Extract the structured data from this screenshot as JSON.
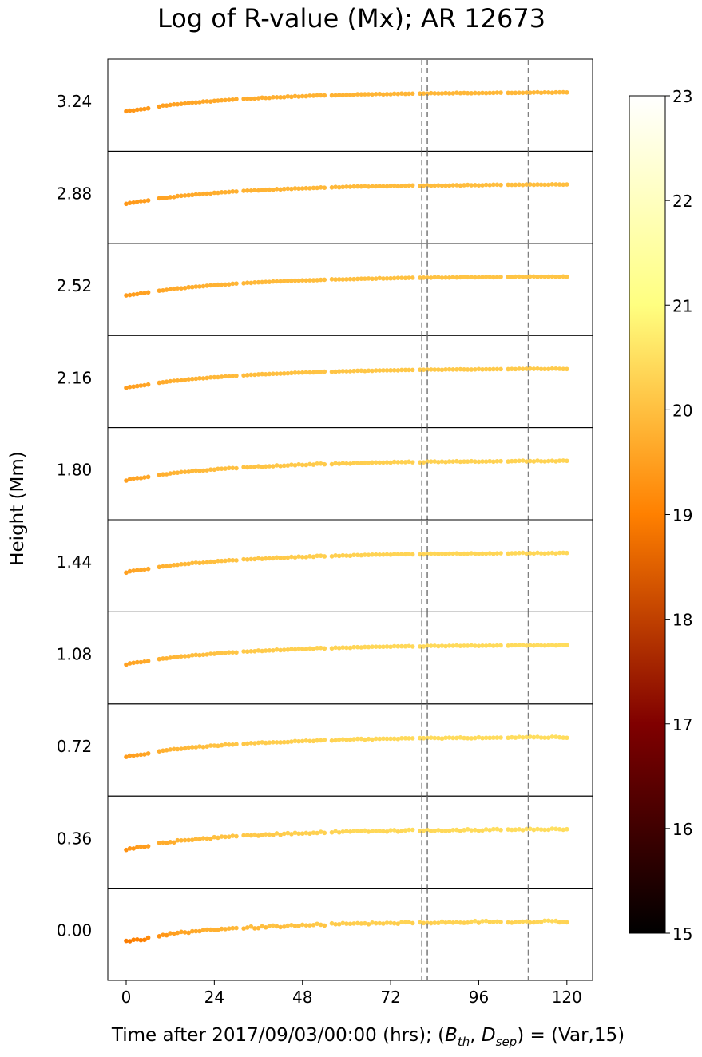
{
  "chart_data": {
    "type": "scatter",
    "title": "Log of R-value (Mx); AR 12673",
    "xlabel_parts": {
      "prefix": "Time after 2017/09/03/00:00 (hrs); (",
      "b": "B",
      "b_sub": "th",
      "sep": ", ",
      "d": "D",
      "d_sub": "sep",
      "suffix": ") = (Var,15)"
    },
    "ylabel": "Height (Mm)",
    "xlim": [
      -5,
      127
    ],
    "x_ticks": [
      "0",
      "24",
      "48",
      "72",
      "96",
      "120"
    ],
    "x_tick_values": [
      0,
      24,
      48,
      72,
      96,
      120
    ],
    "vlines": [
      80.5,
      82.0,
      109.5
    ],
    "colorbar": {
      "min": 15,
      "max": 23,
      "ticks": [
        "15",
        "16",
        "17",
        "18",
        "19",
        "20",
        "21",
        "22",
        "23"
      ],
      "colormap": "afmhot"
    },
    "rows": [
      {
        "height_label": "3.24",
        "base": 19.35,
        "amp": 0.55,
        "noise": 0.01
      },
      {
        "height_label": "2.88",
        "base": 19.4,
        "amp": 0.6,
        "noise": 0.01
      },
      {
        "height_label": "2.52",
        "base": 19.45,
        "amp": 0.65,
        "noise": 0.01
      },
      {
        "height_label": "2.16",
        "base": 19.5,
        "amp": 0.7,
        "noise": 0.01
      },
      {
        "height_label": "1.80",
        "base": 19.55,
        "amp": 0.78,
        "noise": 0.02
      },
      {
        "height_label": "1.44",
        "base": 19.55,
        "amp": 0.85,
        "noise": 0.02
      },
      {
        "height_label": "1.08",
        "base": 19.55,
        "amp": 0.92,
        "noise": 0.02
      },
      {
        "height_label": "0.72",
        "base": 19.5,
        "amp": 1.0,
        "noise": 0.03
      },
      {
        "height_label": "0.36",
        "base": 19.4,
        "amp": 1.1,
        "noise": 0.05
      },
      {
        "height_label": "0.00",
        "base": 19.0,
        "amp": 1.4,
        "noise": 0.08
      }
    ],
    "segments": [
      [
        0,
        6
      ],
      [
        9,
        30
      ],
      [
        32,
        54
      ],
      [
        56,
        78
      ],
      [
        80,
        102
      ],
      [
        104,
        120
      ]
    ],
    "sample_step": 1
  },
  "colors": {
    "frame": "#000000",
    "vline": "#808080"
  }
}
